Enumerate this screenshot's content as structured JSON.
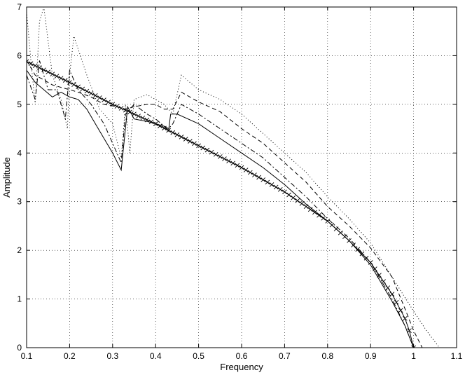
{
  "chart_data": {
    "type": "line",
    "title": "",
    "xlabel": "Frequency",
    "ylabel": "Amplitude",
    "xlim": [
      0.1,
      1.1
    ],
    "ylim": [
      0,
      7
    ],
    "x_ticks": [
      0.1,
      0.2,
      0.3,
      0.4,
      0.5,
      0.6,
      0.7,
      0.8,
      0.9,
      1,
      1.1
    ],
    "x_tick_labels": [
      "0.1",
      "0.2",
      "0.3",
      "0.4",
      "0.5",
      "0.6",
      "0.7",
      "0.8",
      "0.9",
      "1",
      "1.1"
    ],
    "y_ticks": [
      0,
      1,
      2,
      3,
      4,
      5,
      6,
      7
    ],
    "y_tick_labels": [
      "0",
      "1",
      "2",
      "3",
      "4",
      "5",
      "6",
      "7"
    ],
    "grid": true,
    "legend": "none",
    "series": [
      {
        "style": "solid",
        "x": [
          0.1,
          0.12,
          0.14,
          0.16,
          0.18,
          0.2,
          0.22,
          0.24,
          0.26,
          0.28,
          0.3,
          0.32,
          0.335,
          0.35,
          0.38,
          0.4,
          0.42,
          0.43,
          0.435,
          0.45,
          0.5,
          0.55,
          0.6,
          0.65,
          0.7,
          0.75,
          0.8,
          0.85,
          0.9,
          0.95,
          0.98,
          1.0
        ],
        "y": [
          5.7,
          5.45,
          5.3,
          5.15,
          5.25,
          5.15,
          5.1,
          4.9,
          4.6,
          4.3,
          4.0,
          3.65,
          4.95,
          4.7,
          4.65,
          4.6,
          4.55,
          4.45,
          4.8,
          4.8,
          4.6,
          4.3,
          4.0,
          3.7,
          3.35,
          2.95,
          2.6,
          2.2,
          1.7,
          0.95,
          0.45,
          0.0
        ]
      },
      {
        "style": "dashdot",
        "x": [
          0.1,
          0.12,
          0.13,
          0.15,
          0.17,
          0.19,
          0.2,
          0.22,
          0.25,
          0.28,
          0.3,
          0.32,
          0.33,
          0.35,
          0.38,
          0.4,
          0.42,
          0.43,
          0.44,
          0.46,
          0.5,
          0.55,
          0.6,
          0.65,
          0.7,
          0.75,
          0.8,
          0.85,
          0.9,
          0.95,
          0.98,
          1.0
        ],
        "y": [
          5.6,
          5.1,
          5.9,
          5.3,
          5.3,
          4.7,
          5.7,
          5.3,
          5.0,
          4.6,
          4.2,
          3.8,
          4.8,
          5.0,
          4.8,
          4.7,
          4.55,
          4.5,
          4.6,
          5.0,
          4.8,
          4.5,
          4.2,
          3.9,
          3.5,
          3.1,
          2.65,
          2.25,
          1.75,
          1.0,
          0.45,
          0.0
        ]
      },
      {
        "style": "dashed",
        "x": [
          0.1,
          0.12,
          0.14,
          0.16,
          0.18,
          0.2,
          0.22,
          0.25,
          0.28,
          0.31,
          0.33,
          0.35,
          0.38,
          0.4,
          0.42,
          0.44,
          0.46,
          0.5,
          0.55,
          0.6,
          0.65,
          0.7,
          0.75,
          0.8,
          0.85,
          0.9,
          0.95,
          0.98,
          1.0,
          1.02
        ],
        "y": [
          5.9,
          5.6,
          5.5,
          5.4,
          5.35,
          5.3,
          5.25,
          5.15,
          5.0,
          4.95,
          4.9,
          4.95,
          5.0,
          5.0,
          4.9,
          4.9,
          5.25,
          5.05,
          4.85,
          4.5,
          4.2,
          3.8,
          3.4,
          2.9,
          2.5,
          2.05,
          1.45,
          0.8,
          0.35,
          0.0
        ]
      },
      {
        "style": "dotted",
        "x": [
          0.1,
          0.11,
          0.12,
          0.13,
          0.14,
          0.16,
          0.18,
          0.195,
          0.2,
          0.21,
          0.24,
          0.27,
          0.3,
          0.32,
          0.33,
          0.34,
          0.35,
          0.38,
          0.4,
          0.42,
          0.44,
          0.46,
          0.5,
          0.55,
          0.6,
          0.65,
          0.7,
          0.75,
          0.8,
          0.85,
          0.9,
          0.95,
          1.0,
          1.03,
          1.06
        ],
        "y": [
          6.9,
          5.9,
          5.0,
          6.7,
          7.0,
          5.6,
          5.1,
          4.5,
          5.6,
          6.4,
          5.6,
          4.9,
          4.6,
          3.9,
          5.0,
          4.0,
          5.1,
          5.2,
          5.1,
          5.0,
          4.8,
          5.6,
          5.3,
          5.1,
          4.8,
          4.4,
          4.0,
          3.6,
          3.1,
          2.65,
          2.15,
          1.45,
          0.75,
          0.35,
          0.0
        ]
      },
      {
        "style": "solid-x",
        "x": [
          0.1,
          0.2,
          0.3,
          0.4,
          0.5,
          0.6,
          0.7,
          0.8,
          0.85,
          0.9,
          0.95,
          0.98,
          0.99,
          1.0
        ],
        "y": [
          5.88,
          5.45,
          5.0,
          4.6,
          4.15,
          3.7,
          3.2,
          2.6,
          2.2,
          1.75,
          1.1,
          0.6,
          0.35,
          0.0
        ]
      }
    ]
  }
}
